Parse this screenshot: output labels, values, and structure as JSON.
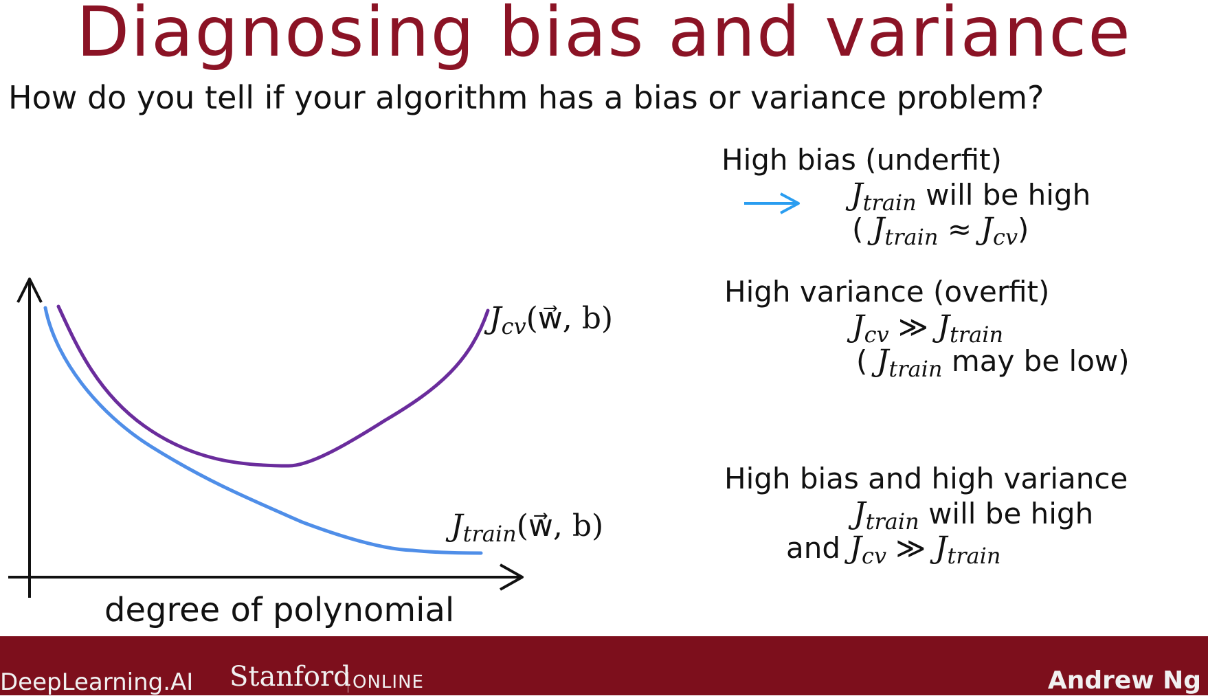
{
  "slide": {
    "title": "Diagnosing bias and variance",
    "question": "How do you tell if your algorithm has a bias or variance problem?"
  },
  "plot": {
    "xlabel": "degree of polynomial",
    "cv_curve_color": "#6a2c9c",
    "train_curve_color": "#4f8ee8",
    "arrow_color": "#2a9df0",
    "cv_label": {
      "J": "J",
      "sub": "cv",
      "args": "(w⃗, b)"
    },
    "train_label": {
      "J": "J",
      "sub": "train",
      "args": "(w⃗, b)"
    }
  },
  "notes": {
    "high_bias": {
      "heading": "High bias (underfit)",
      "line1_J": "J",
      "line1_sub": "train",
      "line1_text": "will be high",
      "line2_open": "(",
      "line2_J1": "J",
      "line2_sub1": "train",
      "line2_op": "≈",
      "line2_J2": "J",
      "line2_sub2": "cv",
      "line2_close": ")"
    },
    "high_variance": {
      "heading": "High variance (overfit)",
      "line1_J1": "J",
      "line1_sub1": "cv",
      "line1_op": "≫",
      "line1_J2": "J",
      "line1_sub2": "train",
      "line2_open": "(",
      "line2_J": "J",
      "line2_sub": "train",
      "line2_text": "may be low)"
    },
    "both": {
      "heading": "High bias and high variance",
      "line1_J": "J",
      "line1_sub": "train",
      "line1_text": "will be high",
      "line2_and": "and",
      "line2_J1": "J",
      "line2_sub1": "cv",
      "line2_op": "≫",
      "line2_J2": "J",
      "line2_sub2": "train"
    }
  },
  "footer": {
    "brand1": "DeepLearning.AI",
    "brand2": "Stanford",
    "brand2_suffix": "ONLINE",
    "presenter": "Andrew Ng",
    "bar_color": "#7d0f1c"
  }
}
